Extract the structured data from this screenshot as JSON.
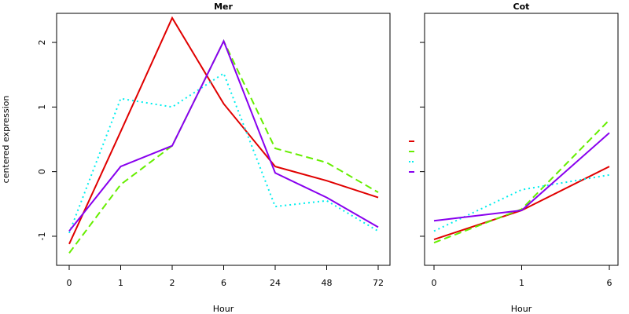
{
  "chart_data": [
    {
      "type": "line",
      "title": "Mer",
      "xlabel": "Hour",
      "ylabel": "centered expression",
      "categories": [
        "0",
        "1",
        "2",
        "6",
        "24",
        "48",
        "72"
      ],
      "ylim": [
        -1.45,
        2.45
      ],
      "yticks": [
        "-1",
        "0",
        "1",
        "2"
      ],
      "series": [
        {
          "values": [
            -1.12,
            0.62,
            2.38,
            1.05,
            0.08,
            -0.14,
            -0.4
          ],
          "color": "#e00000",
          "dash": "solid"
        },
        {
          "values": [
            -1.26,
            -0.2,
            0.4,
            2.02,
            0.36,
            0.14,
            -0.32
          ],
          "color": "#66ee00",
          "dash": "dashed"
        },
        {
          "values": [
            -0.95,
            1.13,
            1.0,
            1.52,
            -0.54,
            -0.45,
            -0.92
          ],
          "color": "#00eeee",
          "dash": "dotted"
        },
        {
          "values": [
            -0.92,
            0.08,
            0.4,
            2.02,
            -0.02,
            -0.4,
            -0.86
          ],
          "color": "#8800ee",
          "dash": "solid"
        }
      ]
    },
    {
      "type": "line",
      "title": "Cot",
      "xlabel": "Hour",
      "ylabel": "",
      "categories": [
        "0",
        "1",
        "6"
      ],
      "ylim": [
        -1.45,
        2.45
      ],
      "yticks": [],
      "series": [
        {
          "values": [
            -1.05,
            -0.6,
            0.08
          ],
          "color": "#e00000",
          "dash": "solid"
        },
        {
          "values": [
            -1.1,
            -0.58,
            0.8
          ],
          "color": "#66ee00",
          "dash": "dashed"
        },
        {
          "values": [
            -0.92,
            -0.28,
            -0.05
          ],
          "color": "#00eeee",
          "dash": "dotted"
        },
        {
          "values": [
            -0.76,
            -0.6,
            0.6
          ],
          "color": "#8800ee",
          "dash": "solid"
        }
      ]
    }
  ],
  "legend": {
    "entries": [
      {
        "color": "#e00000",
        "dash": "solid"
      },
      {
        "color": "#66ee00",
        "dash": "dashed"
      },
      {
        "color": "#00eeee",
        "dash": "dotted"
      },
      {
        "color": "#8800ee",
        "dash": "solid"
      }
    ]
  }
}
